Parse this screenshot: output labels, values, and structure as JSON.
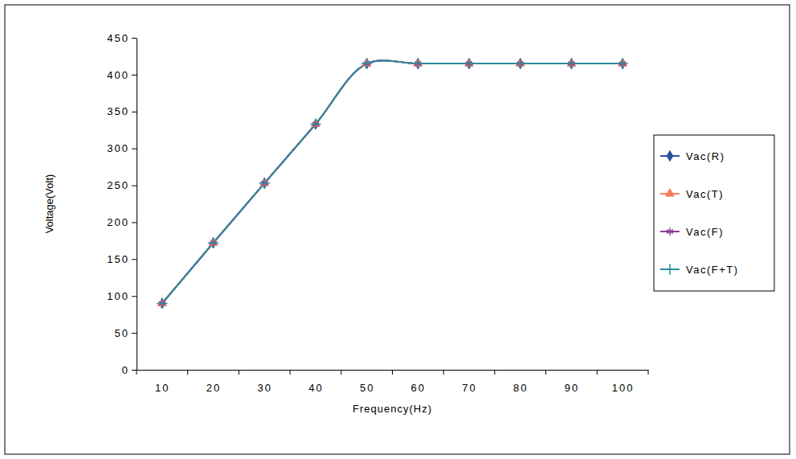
{
  "chart_data": {
    "type": "line",
    "x_label": "Frequency(Hz)",
    "y_label": "Voltage(Volt)",
    "categories": [
      "10",
      "20",
      "30",
      "40",
      "50",
      "60",
      "70",
      "80",
      "90",
      "100"
    ],
    "series": [
      {
        "name": "Vac(R)",
        "color": "#2b4f9e",
        "marker": "diamond",
        "values": [
          90,
          172,
          253,
          333,
          415,
          415,
          415,
          415,
          415,
          415
        ]
      },
      {
        "name": "Vac(T)",
        "color": "#f07f5f",
        "marker": "triangle",
        "values": [
          90,
          172,
          253,
          333,
          415,
          415,
          415,
          415,
          415,
          415
        ]
      },
      {
        "name": "Vac(F)",
        "color": "#8e3a9c",
        "marker": "asterisk",
        "values": [
          90,
          172,
          253,
          333,
          415,
          415,
          415,
          415,
          415,
          415
        ]
      },
      {
        "name": "Vac(F+T)",
        "color": "#2a8c9c",
        "marker": "plus",
        "values": [
          90,
          172,
          253,
          333,
          415,
          415,
          415,
          415,
          415,
          415
        ]
      }
    ],
    "ylim": [
      0,
      450
    ],
    "yticks": [
      0,
      50,
      100,
      150,
      200,
      250,
      300,
      350,
      400,
      450
    ],
    "grid": false,
    "legend": "right",
    "line_style": "smooth"
  }
}
